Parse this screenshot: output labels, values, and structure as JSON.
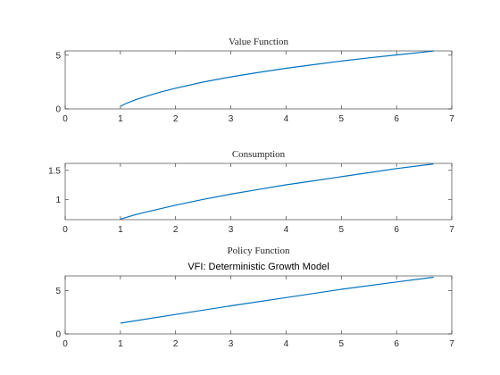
{
  "figure": {
    "background": "#ffffff",
    "axis_color": "#262626"
  },
  "chart_data": [
    {
      "type": "line",
      "title": "Value Function",
      "title_font": "serif",
      "xlabel": "",
      "ylabel": "",
      "xlim": [
        0,
        7
      ],
      "ylim": [
        0,
        5.4
      ],
      "xticks": [
        "0",
        "1",
        "2",
        "3",
        "4",
        "5",
        "6",
        "7"
      ],
      "yticks": [
        "0",
        "5"
      ],
      "ytick_values": [
        0,
        5
      ],
      "grid": false,
      "series": [
        {
          "color": "#0072bd",
          "x": [
            1.0,
            1.1,
            1.2,
            1.3,
            1.5,
            1.75,
            2.0,
            2.5,
            3.0,
            3.5,
            4.0,
            4.5,
            5.0,
            5.5,
            6.0,
            6.67
          ],
          "y": [
            0.25,
            0.5,
            0.7,
            0.9,
            1.23,
            1.6,
            1.93,
            2.5,
            2.98,
            3.4,
            3.78,
            4.12,
            4.45,
            4.75,
            5.03,
            5.38
          ]
        }
      ]
    },
    {
      "type": "line",
      "title": "Consumption",
      "title_font": "serif",
      "xlabel": "",
      "ylabel": "",
      "xlim": [
        0,
        7
      ],
      "ylim": [
        0.65,
        1.62
      ],
      "xticks": [
        "0",
        "1",
        "2",
        "3",
        "4",
        "5",
        "6",
        "7"
      ],
      "yticks": [
        "1",
        "1.5"
      ],
      "ytick_values": [
        1,
        1.5
      ],
      "grid": false,
      "series": [
        {
          "color": "#0072bd",
          "x": [
            1.0,
            1.25,
            1.5,
            2.0,
            2.5,
            3.0,
            3.5,
            4.0,
            4.5,
            5.0,
            5.5,
            6.0,
            6.67
          ],
          "y": [
            0.66,
            0.73,
            0.79,
            0.9,
            1.0,
            1.09,
            1.17,
            1.25,
            1.32,
            1.39,
            1.46,
            1.53,
            1.61
          ]
        }
      ]
    },
    {
      "type": "line",
      "title": "Policy Function",
      "title_font": "serif",
      "subtitle": "VFI: Deterministic Growth Model",
      "xlabel": "",
      "ylabel": "",
      "xlim": [
        0,
        7
      ],
      "ylim": [
        0,
        6.7
      ],
      "xticks": [
        "0",
        "1",
        "2",
        "3",
        "4",
        "5",
        "6",
        "7"
      ],
      "yticks": [
        "0",
        "5"
      ],
      "ytick_values": [
        0,
        5
      ],
      "grid": false,
      "series": [
        {
          "color": "#0072bd",
          "x": [
            1.0,
            2.0,
            3.0,
            4.0,
            5.0,
            6.0,
            6.67
          ],
          "y": [
            1.25,
            2.25,
            3.25,
            4.2,
            5.15,
            6.0,
            6.55
          ]
        }
      ]
    }
  ]
}
